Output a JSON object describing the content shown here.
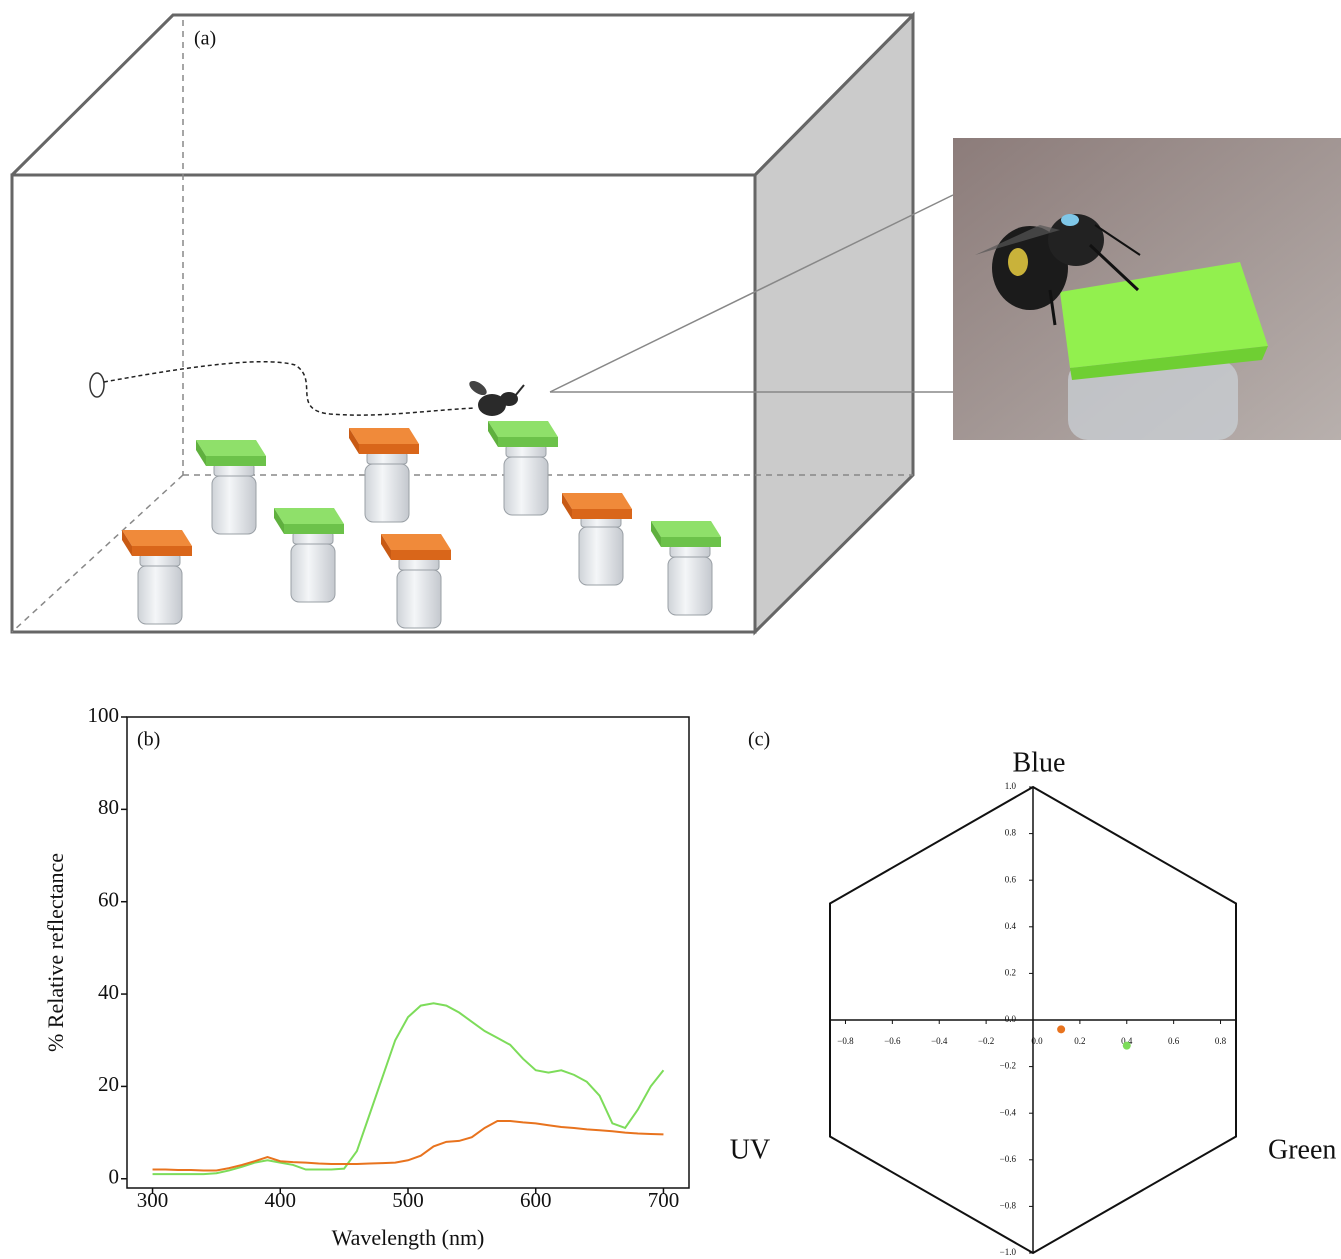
{
  "diagram": {
    "panel_label": "(a)"
  },
  "chart_data": [
    {
      "type": "line",
      "panel_label": "(b)",
      "x_label": "Wavelength (nm)",
      "y_label": "% Relative reflectance",
      "x": [
        300,
        310,
        320,
        330,
        340,
        350,
        360,
        370,
        380,
        390,
        400,
        410,
        420,
        430,
        440,
        450,
        460,
        470,
        480,
        490,
        500,
        510,
        520,
        530,
        540,
        550,
        560,
        570,
        580,
        590,
        600,
        610,
        620,
        630,
        640,
        650,
        660,
        670,
        680,
        690,
        700
      ],
      "series": [
        {
          "color": "#7ddc5a",
          "values": [
            1,
            1,
            1,
            1,
            1,
            1.2,
            1.8,
            2.6,
            3.5,
            4,
            3.5,
            3,
            2,
            2,
            2,
            2.2,
            6,
            14,
            22,
            30,
            35,
            37.5,
            38,
            37.5,
            36,
            34,
            32,
            30.5,
            29,
            26,
            23.5,
            23,
            23.5,
            22.5,
            21,
            18,
            12,
            11,
            15,
            20,
            23.5
          ]
        },
        {
          "color": "#e8731e",
          "values": [
            2,
            2,
            1.9,
            1.9,
            1.8,
            1.8,
            2.3,
            3,
            3.8,
            4.7,
            3.8,
            3.6,
            3.5,
            3.3,
            3.2,
            3.2,
            3.2,
            3.3,
            3.4,
            3.5,
            4,
            5,
            7,
            8,
            8.2,
            9,
            11,
            12.5,
            12.5,
            12.2,
            12,
            11.6,
            11.2,
            11,
            10.7,
            10.5,
            10.3,
            10,
            9.8,
            9.7,
            9.6
          ]
        }
      ],
      "xlim": [
        280,
        720
      ],
      "xticks": [
        300,
        400,
        500,
        600,
        700
      ],
      "ylim": [
        -2,
        100
      ],
      "yticks": [
        0,
        20,
        40,
        60,
        80,
        100
      ]
    },
    {
      "type": "scatter",
      "panel_label": "(c)",
      "corner_labels": {
        "top": "Blue",
        "bottom_left": "UV",
        "bottom_right": "Green"
      },
      "series": [
        {
          "color": "#e8731e",
          "x": [
            0.12
          ],
          "values": [
            -0.04
          ]
        },
        {
          "color": "#7ddc5a",
          "x": [
            0.4
          ],
          "values": [
            -0.11
          ]
        }
      ],
      "xlim": [
        -0.866,
        0.866
      ],
      "xticks": [
        {
          "value": -0.8,
          "label": "−0.8"
        },
        {
          "value": -0.6,
          "label": "−0.6"
        },
        {
          "value": -0.4,
          "label": "−0.4"
        },
        {
          "value": -0.2,
          "label": "−0.2"
        },
        {
          "value": 0,
          "label": "0.0"
        },
        0.2,
        0.4,
        0.6,
        0.8
      ],
      "ylim": [
        -1,
        1
      ],
      "yticks": [
        {
          "value": 1,
          "label": "1.0"
        },
        0.8,
        0.6,
        0.4,
        0.2,
        {
          "value": 0,
          "label": "0.0"
        },
        {
          "value": -0.2,
          "label": "−0.2"
        },
        {
          "value": -0.4,
          "label": "−0.4"
        },
        {
          "value": -0.6,
          "label": "−0.6"
        },
        {
          "value": -0.8,
          "label": "−0.8"
        },
        {
          "value": -1,
          "label": "−1.0"
        }
      ]
    }
  ]
}
